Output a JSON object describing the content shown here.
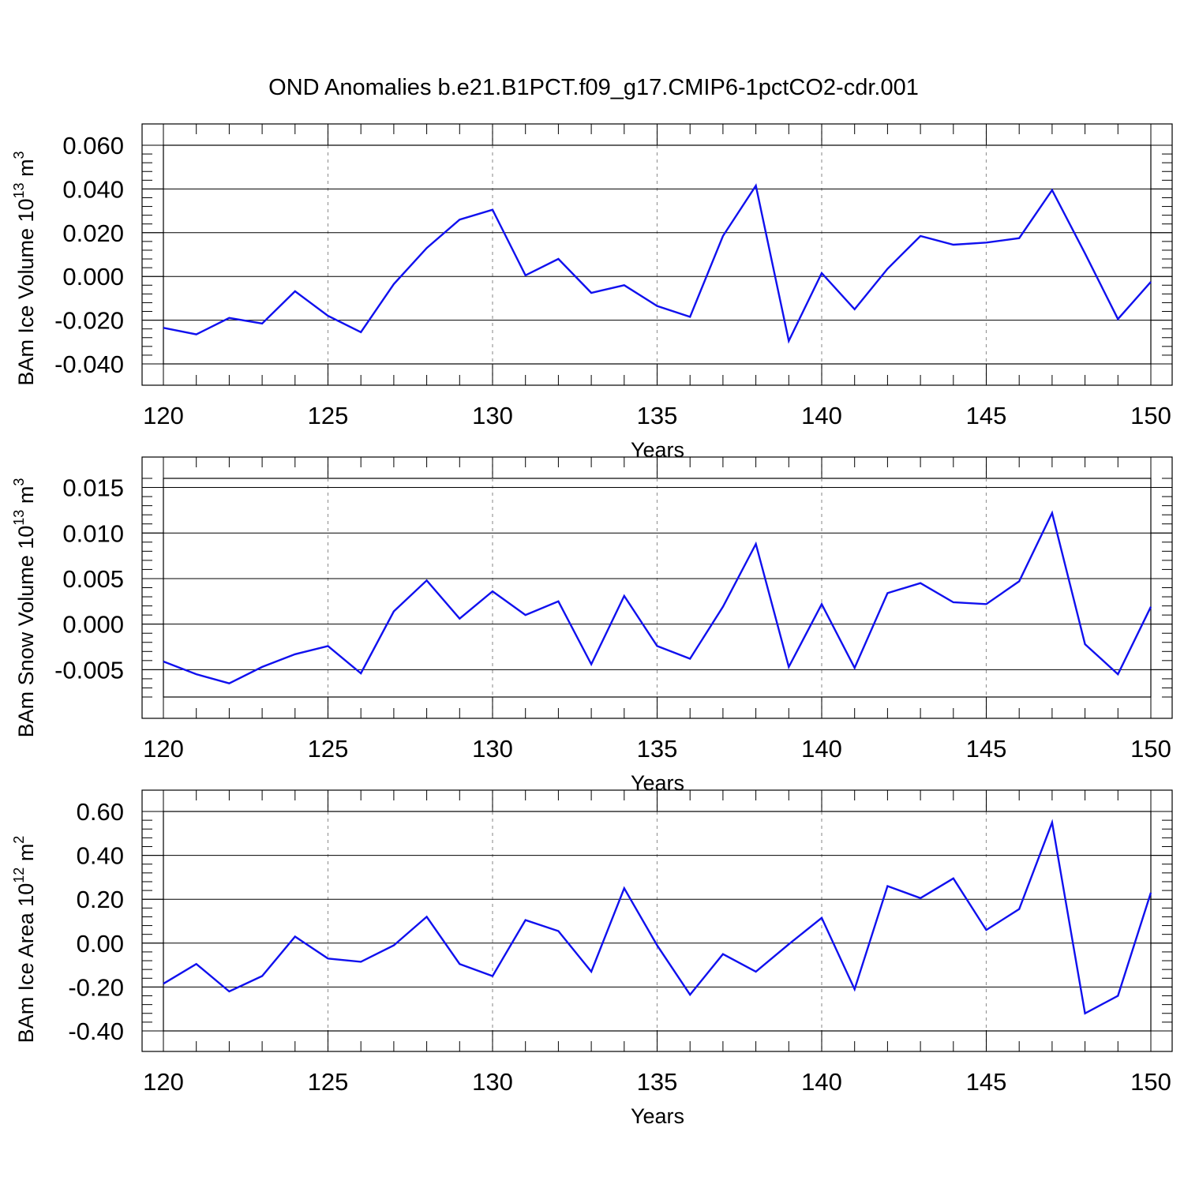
{
  "title": "OND Anomalies b.e21.B1PCT.f09_g17.CMIP6-1pctCO2-cdr.001",
  "colors": {
    "line": "#1010ee",
    "axis": "#000000",
    "grid": "#999999"
  },
  "chart_data": [
    {
      "type": "line",
      "ylabel": {
        "text": "BAm Ice Volume 10",
        "sup": "13",
        "unit": " m",
        "unit_sup": "3"
      },
      "xlabel": "Years",
      "xlim": [
        120,
        150
      ],
      "ylim": [
        -0.04,
        0.06
      ],
      "xticks": [
        "120",
        "125",
        "130",
        "135",
        "140",
        "145",
        "150"
      ],
      "yticks": [
        "-0.040",
        "-0.020",
        "0.000",
        "0.020",
        "0.040",
        "0.060"
      ],
      "grid": "vertical dashed at major x ticks",
      "x": [
        120,
        121,
        122,
        123,
        124,
        125,
        126,
        127,
        128,
        129,
        130,
        131,
        132,
        133,
        134,
        135,
        136,
        137,
        138,
        139,
        140,
        141,
        142,
        143,
        144,
        145,
        146,
        147,
        148,
        149,
        150
      ],
      "series": [
        {
          "values": [
            -0.0235,
            -0.0265,
            -0.019,
            -0.0215,
            -0.0068,
            -0.018,
            -0.0255,
            -0.0035,
            0.013,
            0.026,
            0.0305,
            0.0005,
            0.008,
            -0.0075,
            -0.004,
            -0.0135,
            -0.0185,
            0.0185,
            0.0415,
            -0.0295,
            0.0015,
            -0.015,
            0.0035,
            0.0185,
            0.0145,
            0.0155,
            0.0175,
            0.0395,
            0.0105,
            -0.0195,
            -0.0025
          ]
        }
      ]
    },
    {
      "type": "line",
      "ylabel": {
        "text": "BAm Snow Volume 10",
        "sup": "13",
        "unit": " m",
        "unit_sup": "3"
      },
      "xlabel": "Years",
      "xlim": [
        120,
        150
      ],
      "ylim": [
        -0.008,
        0.016
      ],
      "xticks": [
        "120",
        "125",
        "130",
        "135",
        "140",
        "145",
        "150"
      ],
      "yticks": [
        "-0.005",
        "0.000",
        "0.005",
        "0.010",
        "0.015"
      ],
      "grid": "vertical dashed at major x ticks",
      "x": [
        120,
        121,
        122,
        123,
        124,
        125,
        126,
        127,
        128,
        129,
        130,
        131,
        132,
        133,
        134,
        135,
        136,
        137,
        138,
        139,
        140,
        141,
        142,
        143,
        144,
        145,
        146,
        147,
        148,
        149,
        150
      ],
      "series": [
        {
          "values": [
            -0.0041,
            -0.0055,
            -0.0065,
            -0.0047,
            -0.0033,
            -0.0024,
            -0.0054,
            0.0014,
            0.0048,
            0.0006,
            0.0036,
            0.001,
            0.0025,
            -0.0044,
            0.0031,
            -0.0024,
            -0.0038,
            0.0019,
            0.0088,
            -0.0047,
            0.0022,
            -0.0048,
            0.0034,
            0.0045,
            0.0024,
            0.0022,
            0.0047,
            0.0122,
            -0.0022,
            -0.0055,
            0.0019
          ]
        }
      ]
    },
    {
      "type": "line",
      "ylabel": {
        "text": "BAm Ice Area 10",
        "sup": "12",
        "unit": " m",
        "unit_sup": "2"
      },
      "xlabel": "Years",
      "xlim": [
        120,
        150
      ],
      "ylim": [
        -0.4,
        0.6
      ],
      "xticks": [
        "120",
        "125",
        "130",
        "135",
        "140",
        "145",
        "150"
      ],
      "yticks": [
        "-0.40",
        "-0.20",
        "0.00",
        "0.20",
        "0.40",
        "0.60"
      ],
      "grid": "vertical dashed at major x ticks",
      "x": [
        120,
        121,
        122,
        123,
        124,
        125,
        126,
        127,
        128,
        129,
        130,
        131,
        132,
        133,
        134,
        135,
        136,
        137,
        138,
        139,
        140,
        141,
        142,
        143,
        144,
        145,
        146,
        147,
        148,
        149,
        150
      ],
      "series": [
        {
          "values": [
            -0.185,
            -0.095,
            -0.22,
            -0.15,
            0.03,
            -0.07,
            -0.085,
            -0.01,
            0.12,
            -0.095,
            -0.15,
            0.105,
            0.055,
            -0.13,
            0.25,
            -0.01,
            -0.235,
            -0.05,
            -0.13,
            -0.005,
            0.115,
            -0.21,
            0.26,
            0.205,
            0.295,
            0.06,
            0.155,
            0.55,
            -0.32,
            -0.24,
            0.23
          ]
        }
      ]
    }
  ]
}
